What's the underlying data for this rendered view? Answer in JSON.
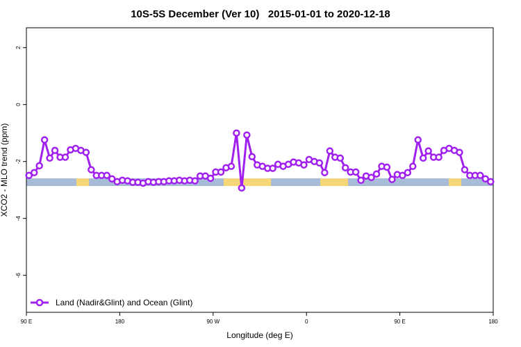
{
  "chart_data": {
    "type": "line",
    "title": "10S-5S December (Ver 10)   2015-01-01 to 2020-12-18",
    "x_label": "Longitude (deg E)",
    "y_label": "XCO2 - MLO trend (ppm)",
    "xlim": [
      90,
      540
    ],
    "ylim": [
      -7.3,
      2.7
    ],
    "xticks": [
      {
        "value": 90,
        "label": "90 E"
      },
      180,
      {
        "value": 270,
        "label": "90 W"
      },
      {
        "value": 360,
        "label": "0"
      },
      {
        "value": 450,
        "label": "90 E"
      },
      {
        "value": 540,
        "label": "180"
      }
    ],
    "yticks": [
      -6,
      -4,
      -2,
      0,
      2
    ],
    "legend": "bottom-left",
    "x": [
      92.5,
      97.5,
      102.5,
      107.5,
      112.5,
      117.5,
      122.5,
      127.5,
      132.5,
      137.5,
      142.5,
      147.5,
      152.5,
      157.5,
      162.5,
      167.5,
      172.5,
      177.5,
      182.5,
      187.5,
      192.5,
      197.5,
      202.5,
      207.5,
      212.5,
      217.5,
      222.5,
      227.5,
      232.5,
      237.5,
      242.5,
      247.5,
      252.5,
      257.5,
      262.5,
      267.5,
      272.5,
      277.5,
      282.5,
      287.5,
      292.5,
      297.5,
      302.5,
      307.5,
      312.5,
      317.5,
      322.5,
      327.5,
      332.5,
      337.5,
      342.5,
      347.5,
      352.5,
      357.5,
      362.5,
      367.5,
      372.5,
      377.5,
      382.5,
      387.5,
      392.5,
      397.5,
      402.5,
      407.5,
      412.5,
      417.5,
      422.5,
      427.5,
      432.5,
      437.5,
      442.5,
      447.5,
      452.5,
      457.5,
      462.5,
      467.5,
      472.5,
      477.5,
      482.5,
      487.5,
      492.5,
      497.5,
      502.5,
      507.5,
      512.5,
      517.5,
      522.5,
      527.5,
      532.5,
      537.5
    ],
    "series": [
      {
        "name": "Land (Nadir&Glint) and Ocean (Glint)",
        "color": "#a020f0",
        "values": [
          -2.49,
          -2.39,
          -2.15,
          -1.24,
          -1.88,
          -1.61,
          -1.85,
          -1.85,
          -1.59,
          -1.54,
          -1.61,
          -1.68,
          -2.29,
          -2.49,
          -2.49,
          -2.49,
          -2.61,
          -2.71,
          -2.66,
          -2.68,
          -2.73,
          -2.73,
          -2.76,
          -2.71,
          -2.73,
          -2.71,
          -2.71,
          -2.68,
          -2.68,
          -2.66,
          -2.68,
          -2.66,
          -2.68,
          -2.51,
          -2.51,
          -2.59,
          -2.37,
          -2.37,
          -2.22,
          -2.17,
          -1.0,
          -2.93,
          -1.07,
          -1.83,
          -2.12,
          -2.17,
          -2.24,
          -2.24,
          -2.1,
          -2.17,
          -2.1,
          -2.02,
          -2.05,
          -2.12,
          -1.93,
          -2.0,
          -2.05,
          -2.39,
          -1.63,
          -1.85,
          -1.88,
          -2.22,
          -2.37,
          -2.37,
          -2.66,
          -2.51,
          -2.56,
          -2.44,
          -2.17,
          -2.2,
          -2.63,
          -2.46,
          -2.49,
          -2.39,
          -2.17,
          -1.24,
          -1.88,
          -1.63,
          -1.85,
          -1.85,
          -1.61,
          -1.54,
          -1.61,
          -1.68,
          -2.29,
          -2.49,
          -2.49,
          -2.49,
          -2.61,
          -2.71
        ]
      }
    ]
  }
}
